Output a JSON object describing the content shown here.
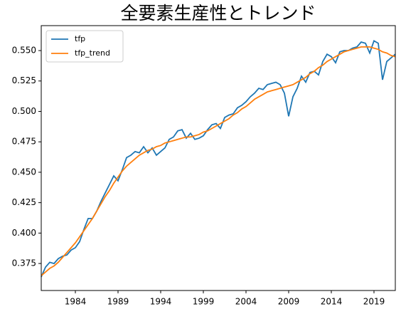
{
  "chart_data": {
    "type": "line",
    "title": "全要素生産性とトレンド",
    "x": [
      1980,
      1980.5,
      1981,
      1981.5,
      1982,
      1982.5,
      1983,
      1983.5,
      1984,
      1984.5,
      1985,
      1985.5,
      1986,
      1986.5,
      1987,
      1987.5,
      1988,
      1988.5,
      1989,
      1989.5,
      1990,
      1990.5,
      1991,
      1991.5,
      1992,
      1992.5,
      1993,
      1993.5,
      1994,
      1994.5,
      1995,
      1995.5,
      1996,
      1996.5,
      1997,
      1997.5,
      1998,
      1998.5,
      1999,
      1999.5,
      2000,
      2000.5,
      2001,
      2001.5,
      2002,
      2002.5,
      2003,
      2003.5,
      2004,
      2004.5,
      2005,
      2005.5,
      2006,
      2006.5,
      2007,
      2007.5,
      2008,
      2008.5,
      2009,
      2009.5,
      2010,
      2010.5,
      2011,
      2011.5,
      2012,
      2012.5,
      2013,
      2013.5,
      2014,
      2014.5,
      2015,
      2015.5,
      2016,
      2016.5,
      2017,
      2017.5,
      2018,
      2018.5,
      2019,
      2019.5,
      2020,
      2020.5,
      2021,
      2021.5
    ],
    "series": [
      {
        "name": "tfp",
        "color": "#1f77b4",
        "values": [
          0.364,
          0.372,
          0.376,
          0.375,
          0.379,
          0.381,
          0.382,
          0.386,
          0.388,
          0.393,
          0.403,
          0.412,
          0.412,
          0.418,
          0.426,
          0.433,
          0.44,
          0.447,
          0.443,
          0.452,
          0.462,
          0.464,
          0.467,
          0.466,
          0.471,
          0.466,
          0.47,
          0.464,
          0.467,
          0.47,
          0.477,
          0.479,
          0.484,
          0.485,
          0.478,
          0.482,
          0.477,
          0.478,
          0.48,
          0.485,
          0.489,
          0.49,
          0.486,
          0.495,
          0.497,
          0.498,
          0.503,
          0.505,
          0.508,
          0.512,
          0.515,
          0.519,
          0.518,
          0.522,
          0.523,
          0.524,
          0.522,
          0.515,
          0.496,
          0.512,
          0.519,
          0.529,
          0.524,
          0.532,
          0.533,
          0.53,
          0.541,
          0.547,
          0.545,
          0.54,
          0.549,
          0.55,
          0.55,
          0.552,
          0.553,
          0.557,
          0.556,
          0.548,
          0.558,
          0.556,
          0.526,
          0.541,
          0.544,
          0.547
        ]
      },
      {
        "name": "tfp_trend",
        "color": "#ff7f0e",
        "values": [
          0.365,
          0.368,
          0.371,
          0.373,
          0.376,
          0.38,
          0.384,
          0.388,
          0.392,
          0.397,
          0.402,
          0.407,
          0.412,
          0.418,
          0.424,
          0.43,
          0.435,
          0.441,
          0.446,
          0.451,
          0.455,
          0.458,
          0.461,
          0.464,
          0.466,
          0.468,
          0.469,
          0.471,
          0.472,
          0.474,
          0.475,
          0.476,
          0.477,
          0.478,
          0.479,
          0.479,
          0.48,
          0.481,
          0.483,
          0.484,
          0.486,
          0.488,
          0.49,
          0.492,
          0.494,
          0.497,
          0.499,
          0.502,
          0.504,
          0.507,
          0.51,
          0.512,
          0.514,
          0.516,
          0.517,
          0.518,
          0.519,
          0.52,
          0.521,
          0.522,
          0.524,
          0.526,
          0.528,
          0.531,
          0.533,
          0.536,
          0.538,
          0.541,
          0.543,
          0.545,
          0.547,
          0.549,
          0.55,
          0.551,
          0.552,
          0.553,
          0.553,
          0.553,
          0.552,
          0.551,
          0.549,
          0.548,
          0.546,
          0.545
        ]
      }
    ],
    "xlim": [
      1980,
      2021.5
    ],
    "xticks": [
      1984,
      1989,
      1994,
      1999,
      2004,
      2009,
      2014,
      2019
    ],
    "ylim": [
      0.3528,
      0.5705
    ],
    "yticks": [
      0.375,
      {
        "value": 0.4,
        "label": "0.400"
      },
      0.425,
      {
        "value": 0.45,
        "label": "0.450"
      },
      0.475,
      {
        "value": 0.5,
        "label": "0.500"
      },
      0.525,
      {
        "value": 0.55,
        "label": "0.550"
      }
    ],
    "legend": "upper left"
  }
}
